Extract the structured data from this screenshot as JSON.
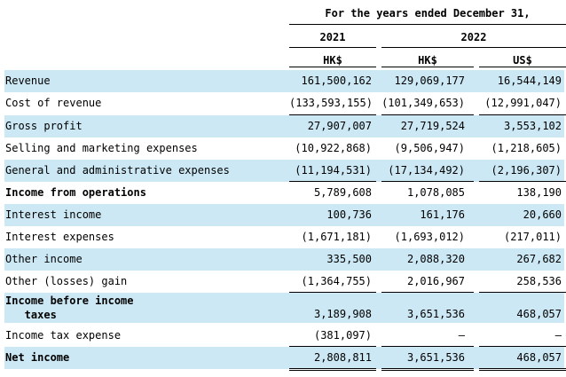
{
  "header": {
    "period": "For the  years ended December  31,",
    "years": [
      "2021",
      "2022"
    ],
    "currencies": [
      "HK$",
      "HK$",
      "US$"
    ]
  },
  "rows": [
    {
      "label": "Revenue",
      "values": [
        "161,500,162",
        "129,069,177",
        "16,544,149"
      ]
    },
    {
      "label": "Cost of revenue",
      "values": [
        "(133,593,155)",
        "(101,349,653)",
        "(12,991,047)"
      ]
    },
    {
      "label": "Gross profit",
      "values": [
        "27,907,007",
        "27,719,524",
        "3,553,102"
      ]
    },
    {
      "label": "Selling and marketing expenses",
      "values": [
        "(10,922,868)",
        "(9,506,947)",
        "(1,218,605)"
      ]
    },
    {
      "label": "General and administrative expenses",
      "values": [
        "(11,194,531)",
        "(17,134,492)",
        "(2,196,307)"
      ]
    },
    {
      "label": "Income from operations",
      "values": [
        "5,789,608",
        "1,078,085",
        "138,190"
      ]
    },
    {
      "label": "Interest income",
      "values": [
        "100,736",
        "161,176",
        "20,660"
      ]
    },
    {
      "label": "Interest expenses",
      "values": [
        "(1,671,181)",
        "(1,693,012)",
        "(217,011)"
      ]
    },
    {
      "label": "Other income",
      "values": [
        "335,500",
        "2,088,320",
        "267,682"
      ]
    },
    {
      "label": "Other (losses) gain",
      "values": [
        "(1,364,755)",
        "2,016,967",
        "258,536"
      ]
    },
    {
      "label_line1": "Income before income",
      "label_line2": "   taxes",
      "values": [
        "3,189,908",
        "3,651,536",
        "468,057"
      ]
    },
    {
      "label": "Income tax expense",
      "values": [
        "(381,097)",
        "—",
        "—"
      ]
    },
    {
      "label": "Net income",
      "values": [
        "2,808,811",
        "3,651,536",
        "468,057"
      ]
    }
  ]
}
